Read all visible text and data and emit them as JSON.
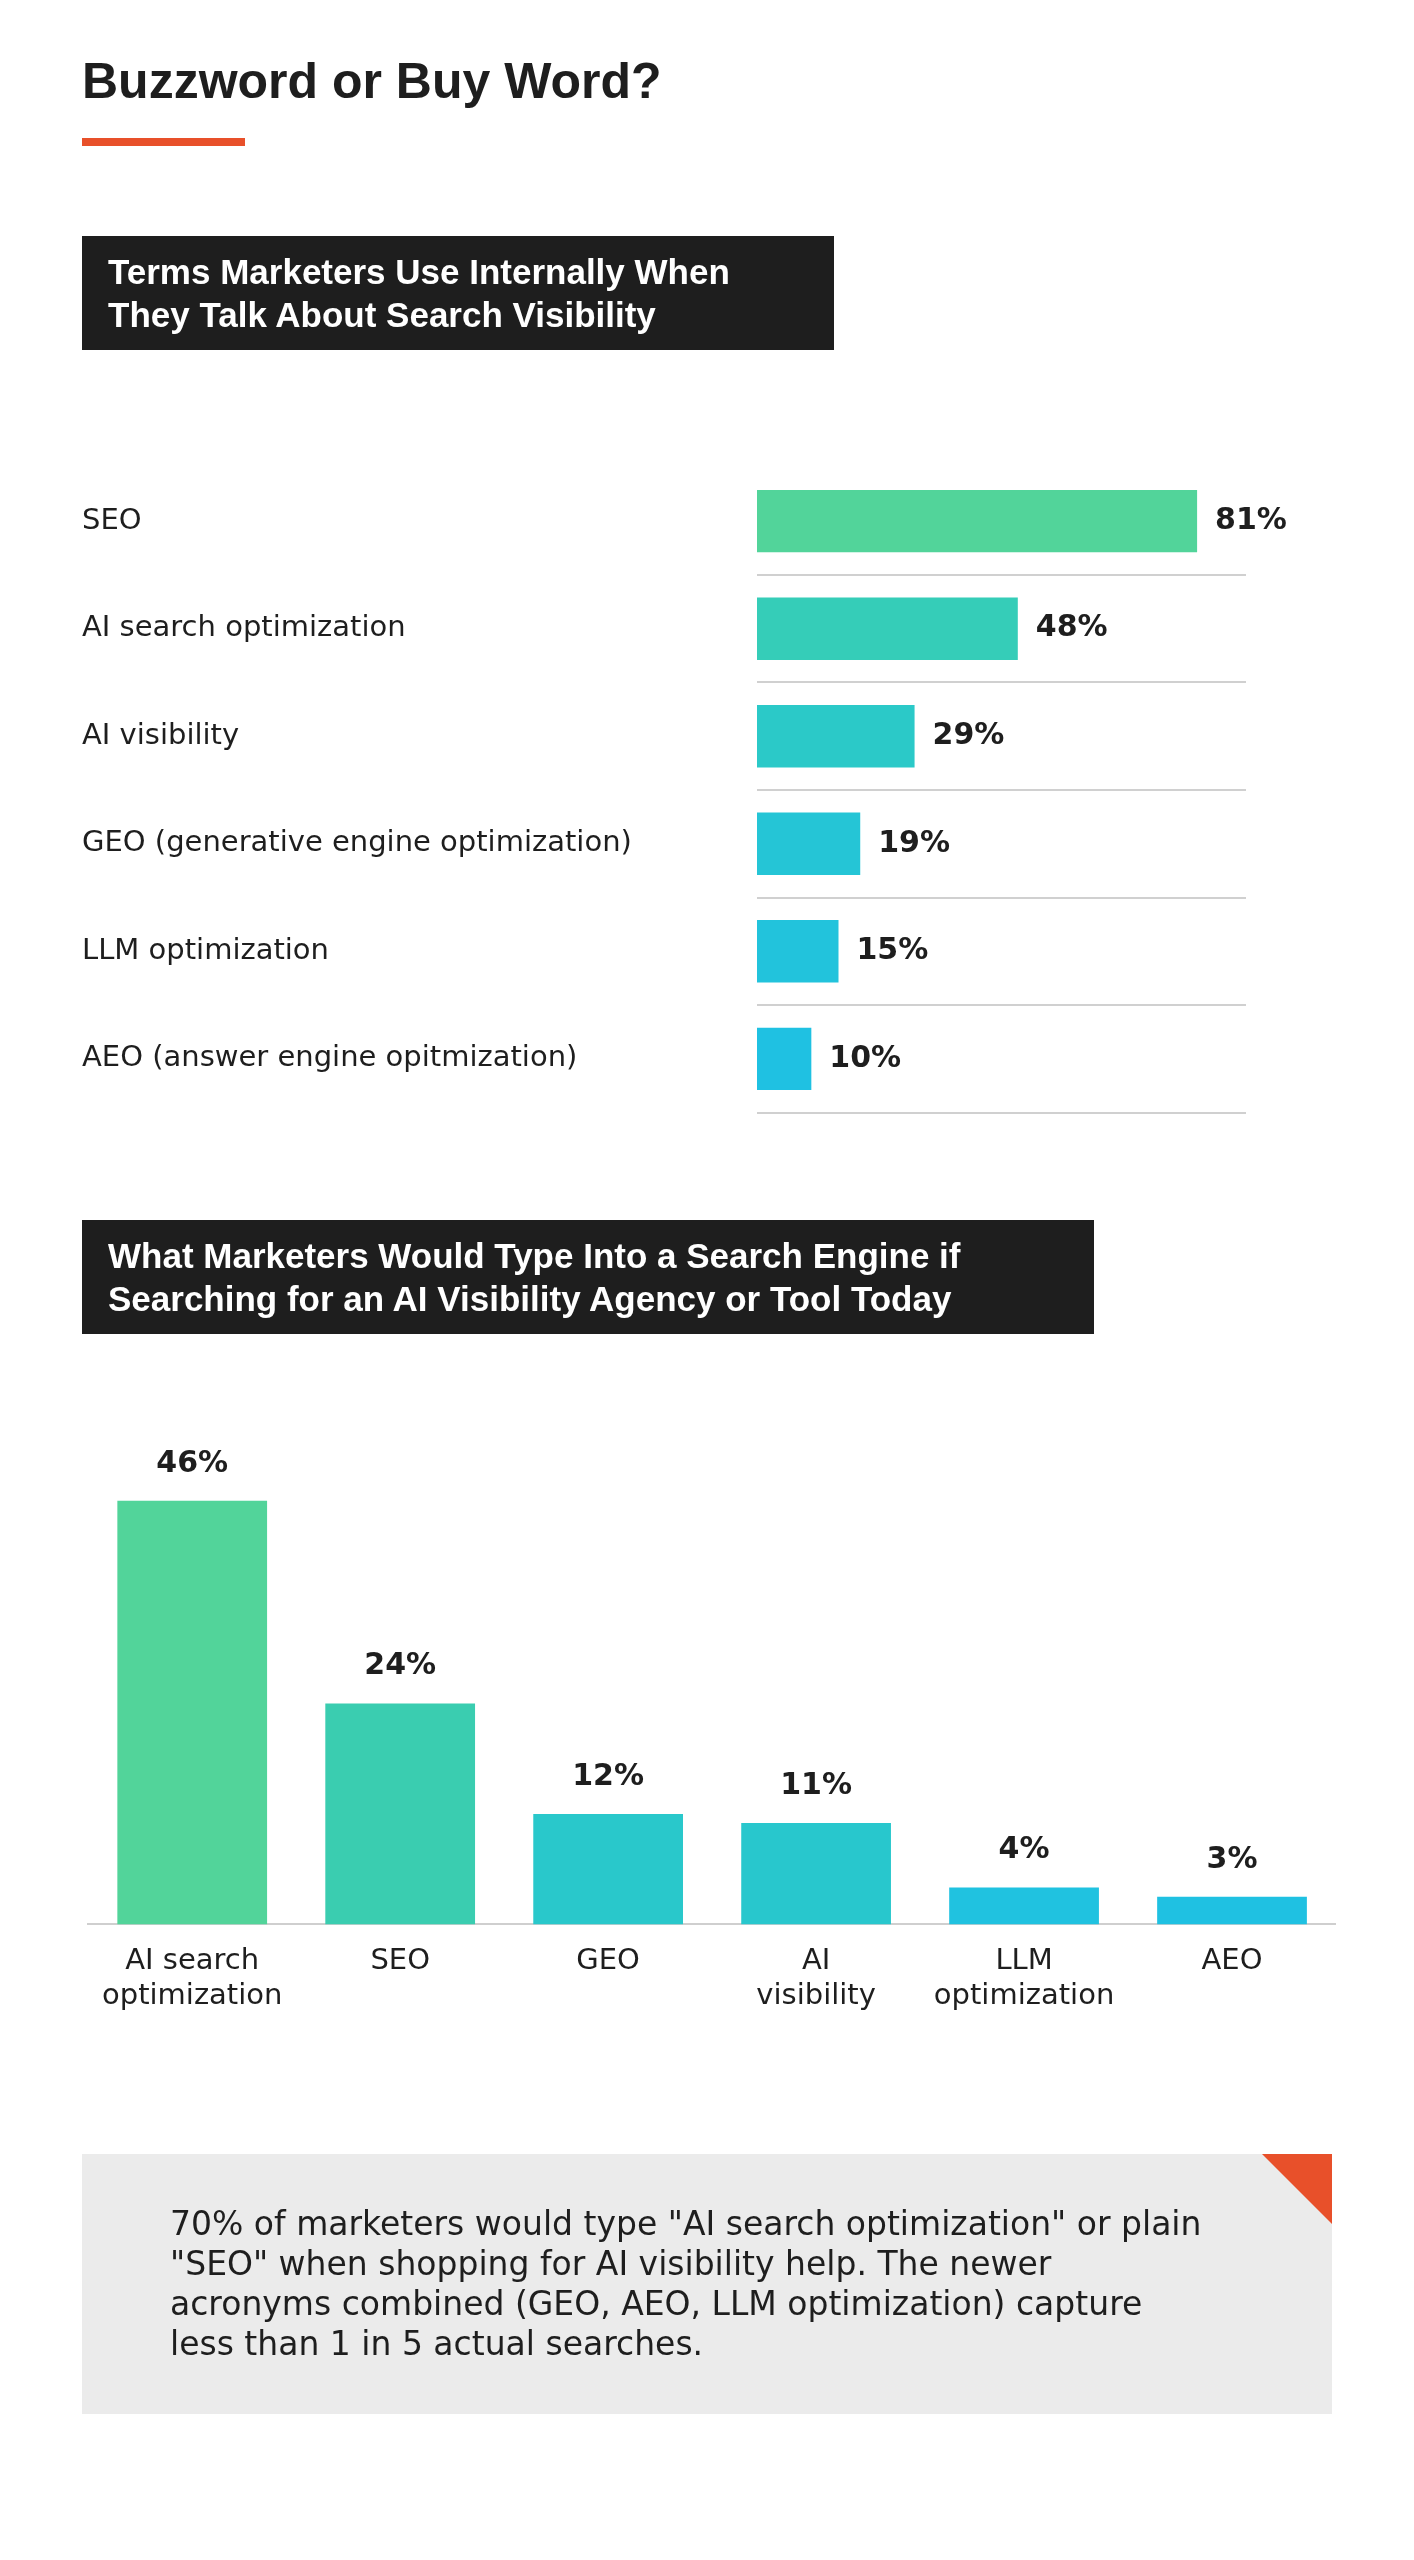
{
  "chart_data": [
    {
      "type": "bar",
      "title": "Buzzword or Buy Word?",
      "subtitle": "Terms Marketers Use Internally When They Talk About Search Visibility",
      "orientation": "horizontal",
      "grid": "y",
      "categories": [
        "SEO",
        "AI search optimization",
        "AI visibility",
        "GEO (generative engine optimization)",
        "LLM optimization",
        "AEO (answer engine opitmization)"
      ],
      "values": [
        81,
        48,
        29,
        19,
        15,
        10
      ],
      "value_labels": [
        "81%",
        "48%",
        "29%",
        "19%",
        "15%",
        "10%"
      ],
      "colors": [
        "#52d49a",
        "#35cdb8",
        "#2bc9c8",
        "#25c5d6",
        "#22c3dc",
        "#1fc1e2"
      ]
    },
    {
      "type": "bar",
      "title": "What Marketers Would Type Into a Search Engine if Searching for an AI Visibility Agency or Tool Today",
      "categories": [
        "AI search optimization",
        "SEO",
        "GEO",
        "AI visibility",
        "LLM optimization",
        "AEO"
      ],
      "values": [
        46,
        24,
        12,
        11,
        4,
        3
      ],
      "value_labels": [
        "46%",
        "24%",
        "12%",
        "11%",
        "4%",
        "3%"
      ],
      "colors": [
        "#52d49a",
        "#3acdb0",
        "#29c8cb",
        "#28c7cd",
        "#20c2e0",
        "#1fc1e2"
      ],
      "annotations": [
        "70% of marketers would type \"AI search optimization\" or plain \"SEO\" when shopping for AI visibility help. The newer acronyms combined (GEO, AEO, LLM optimization) capture less than 1 in 5 actual searches."
      ]
    }
  ]
}
